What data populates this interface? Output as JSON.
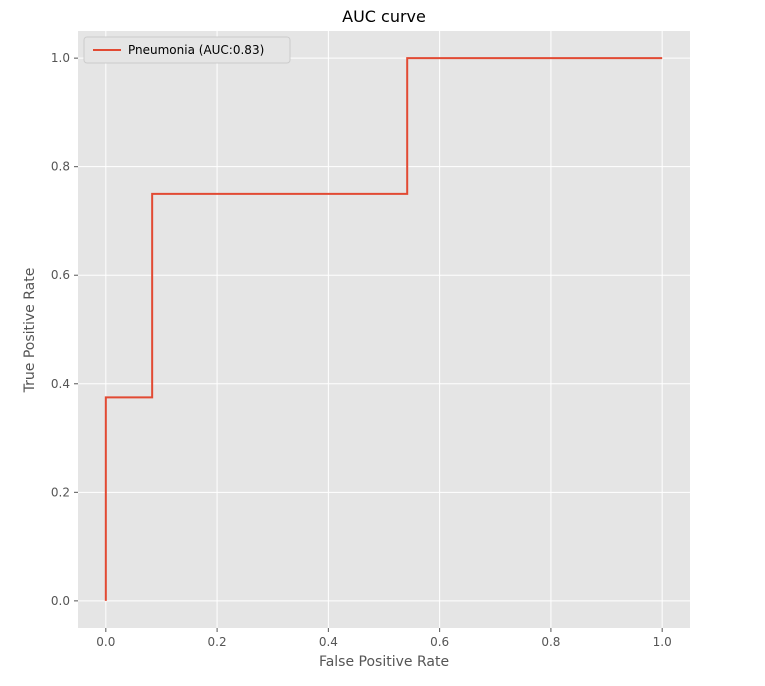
{
  "chart_data": {
    "type": "line",
    "title": "AUC curve",
    "xlabel": "False Positive Rate",
    "ylabel": "True Positive Rate",
    "xlim": [
      -0.05,
      1.05
    ],
    "ylim": [
      -0.05,
      1.05
    ],
    "xticks": [
      0.0,
      0.2,
      0.4,
      0.6,
      0.8,
      1.0
    ],
    "xtick_labels": [
      "0.0",
      "0.2",
      "0.4",
      "0.6",
      "0.8",
      "1.0"
    ],
    "yticks": [
      0.0,
      0.2,
      0.4,
      0.6,
      0.8,
      1.0
    ],
    "ytick_labels": [
      "0.0",
      "0.2",
      "0.4",
      "0.6",
      "0.8",
      "1.0"
    ],
    "grid": true,
    "legend_position": "top-left",
    "series": [
      {
        "name": "Pneumonia (AUC:0.83)",
        "color": "#E24A33",
        "step": true,
        "x": [
          0.0,
          0.0,
          0.0833,
          0.0833,
          0.5417,
          0.5417,
          1.0
        ],
        "y": [
          0.0,
          0.375,
          0.375,
          0.75,
          0.75,
          1.0,
          1.0
        ]
      }
    ]
  }
}
